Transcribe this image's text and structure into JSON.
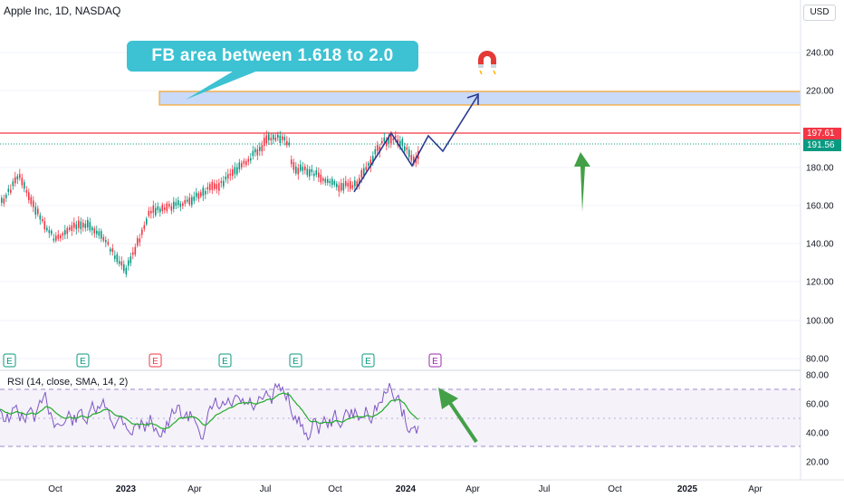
{
  "header": {
    "title": "Apple Inc, 1D, NASDAQ",
    "currency": "USD"
  },
  "callout": {
    "text": "FB area between 1.618 to 2.0"
  },
  "price_axis": {
    "ticks": [
      "240.00",
      "220.00",
      "180.00",
      "160.00",
      "140.00",
      "120.00",
      "100.00",
      "80.00"
    ]
  },
  "price_tags": [
    {
      "label": "197.61",
      "color": "#f23645"
    },
    {
      "label": "191.56",
      "color": "#089981"
    }
  ],
  "rsi": {
    "label": "RSI (14, close, SMA, 14, 2)",
    "ticks": [
      "80.00",
      "60.00",
      "40.00",
      "20.00"
    ]
  },
  "time_axis": {
    "labels": [
      {
        "text": "Oct",
        "bold": false
      },
      {
        "text": "2023",
        "bold": true
      },
      {
        "text": "Apr",
        "bold": false
      },
      {
        "text": "Jul",
        "bold": false
      },
      {
        "text": "Oct",
        "bold": false
      },
      {
        "text": "2024",
        "bold": true
      },
      {
        "text": "Apr",
        "bold": false
      },
      {
        "text": "Jul",
        "bold": false
      },
      {
        "text": "Oct",
        "bold": false
      },
      {
        "text": "2025",
        "bold": true
      },
      {
        "text": "Apr",
        "bold": false
      }
    ]
  },
  "earnings_markers": [
    "E",
    "E",
    "E",
    "E",
    "E",
    "E",
    "E"
  ],
  "colors": {
    "up": "#089981",
    "down": "#f23645",
    "rsi_line": "#7e57c2",
    "rsi_ma": "#22ab2a",
    "fib_zone": "#c9daf8",
    "fib_border": "#ff9800",
    "arrow": "#43a047",
    "path": "#2a3a8f"
  }
}
